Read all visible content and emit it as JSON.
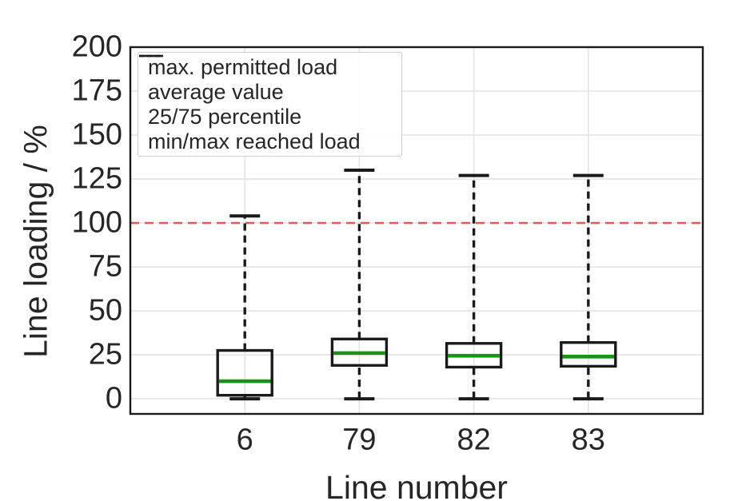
{
  "figure": {
    "background": "#ffffff",
    "text_color": "#262626",
    "grid_color": "#e4e4e4",
    "border_color": "#1a1a1a"
  },
  "chart_data": {
    "type": "boxplot",
    "title": "",
    "xlabel": "Line number",
    "ylabel": "Line loading / %",
    "categories": [
      "6",
      "79",
      "82",
      "83"
    ],
    "y_ticks": [
      0,
      25,
      50,
      75,
      100,
      125,
      150,
      175,
      200
    ],
    "ylim": [
      -8.6,
      200
    ],
    "grid": "both",
    "box_color": "#1a1a1a",
    "median_color": "#1e8f1e",
    "reference_line": {
      "value": 100,
      "color": "#d65f5f",
      "style": "dashed",
      "label": "max. permitted load"
    },
    "series": [
      {
        "category": "6",
        "min": 0,
        "q1": 2,
        "median": 10,
        "q3": 27.5,
        "max": 104
      },
      {
        "category": "79",
        "min": 0,
        "q1": 19,
        "median": 26,
        "q3": 34,
        "max": 130
      },
      {
        "category": "82",
        "min": 0,
        "q1": 18,
        "median": 24.5,
        "q3": 31.5,
        "max": 127
      },
      {
        "category": "83",
        "min": 0,
        "q1": 18.5,
        "median": 24,
        "q3": 32,
        "max": 127
      }
    ],
    "legend_position": "upper left",
    "legend": [
      {
        "label": "max. permitted load",
        "color": "#d65f5f",
        "style": "dashed"
      },
      {
        "label": "average value",
        "color": "#3aa83a",
        "style": "solid"
      },
      {
        "label": "25/75 percentile",
        "color": "#1a1a1a",
        "style": "solid"
      },
      {
        "label": "min/max reached load",
        "color": "#1a1a1a",
        "style": "dashed"
      }
    ]
  }
}
